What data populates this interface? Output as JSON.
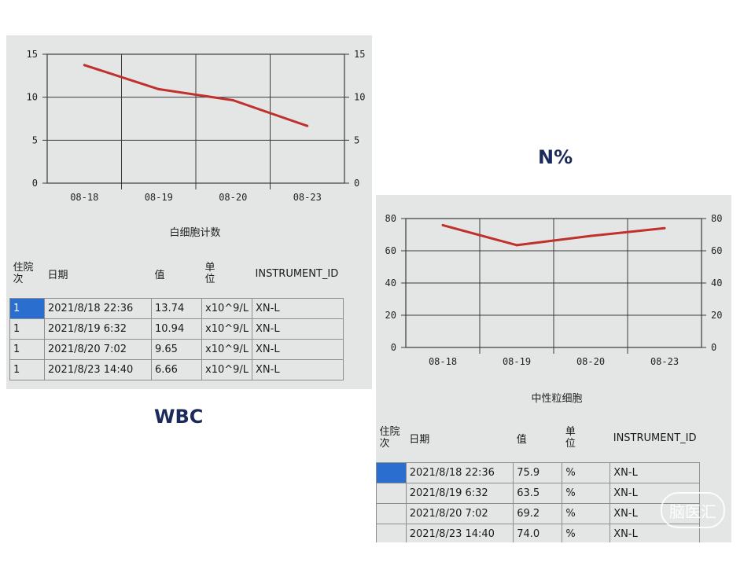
{
  "captions": {
    "wbc": "WBC",
    "n": "N%"
  },
  "watermark": "脑医汇",
  "colors": {
    "line": "#c0302c",
    "grid": "#3a3a3a",
    "panel": "#e4e6e5",
    "selected_row": "#2a6fcf"
  },
  "chart_data": [
    {
      "type": "line",
      "title": "白细胞计数",
      "categories": [
        "08-18",
        "08-19",
        "08-20",
        "08-23"
      ],
      "series": [
        {
          "values": [
            13.74,
            10.94,
            9.65,
            6.66
          ]
        }
      ],
      "ylim": [
        0,
        15
      ],
      "yticks": [
        0,
        5,
        10,
        15
      ],
      "dual_y_axis": true,
      "grid": true
    },
    {
      "type": "line",
      "title": "中性粒细胞",
      "categories": [
        "08-18",
        "08-19",
        "08-20",
        "08-23"
      ],
      "series": [
        {
          "values": [
            75.9,
            63.5,
            69.2,
            74.0
          ]
        }
      ],
      "ylim": [
        0,
        80
      ],
      "yticks": [
        0,
        20,
        40,
        60,
        80
      ],
      "dual_y_axis": true,
      "grid": true
    }
  ],
  "wbc_table": {
    "headers": {
      "admit": "住院次",
      "admit_l1": "住院",
      "admit_l2": "次",
      "date": "日期",
      "value": "值",
      "unit_l1": "单",
      "unit_l2": "位",
      "instrument": "INSTRUMENT_ID"
    },
    "rows": [
      {
        "admit": "1",
        "date": "2021/8/18 22:36",
        "value": "13.74",
        "unit": "x10^9/L",
        "instrument": "XN-L"
      },
      {
        "admit": "1",
        "date": "2021/8/19 6:32",
        "value": "10.94",
        "unit": "x10^9/L",
        "instrument": "XN-L"
      },
      {
        "admit": "1",
        "date": "2021/8/20 7:02",
        "value": "9.65",
        "unit": "x10^9/L",
        "instrument": "XN-L"
      },
      {
        "admit": "1",
        "date": "2021/8/23 14:40",
        "value": "6.66",
        "unit": "x10^9/L",
        "instrument": "XN-L"
      }
    ]
  },
  "n_table": {
    "headers": {
      "admit_l1": "住院",
      "admit_l2": "次",
      "date": "日期",
      "value": "值",
      "unit_l1": "单",
      "unit_l2": "位",
      "instrument": "INSTRUMENT_ID"
    },
    "rows": [
      {
        "admit": "",
        "date": "2021/8/18 22:36",
        "value": "75.9",
        "unit": "%",
        "instrument": "XN-L"
      },
      {
        "admit": "",
        "date": "2021/8/19 6:32",
        "value": "63.5",
        "unit": "%",
        "instrument": "XN-L"
      },
      {
        "admit": "",
        "date": "2021/8/20 7:02",
        "value": "69.2",
        "unit": "%",
        "instrument": "XN-L"
      },
      {
        "admit": "",
        "date": "2021/8/23 14:40",
        "value": "74.0",
        "unit": "%",
        "instrument": "XN-L"
      }
    ]
  }
}
